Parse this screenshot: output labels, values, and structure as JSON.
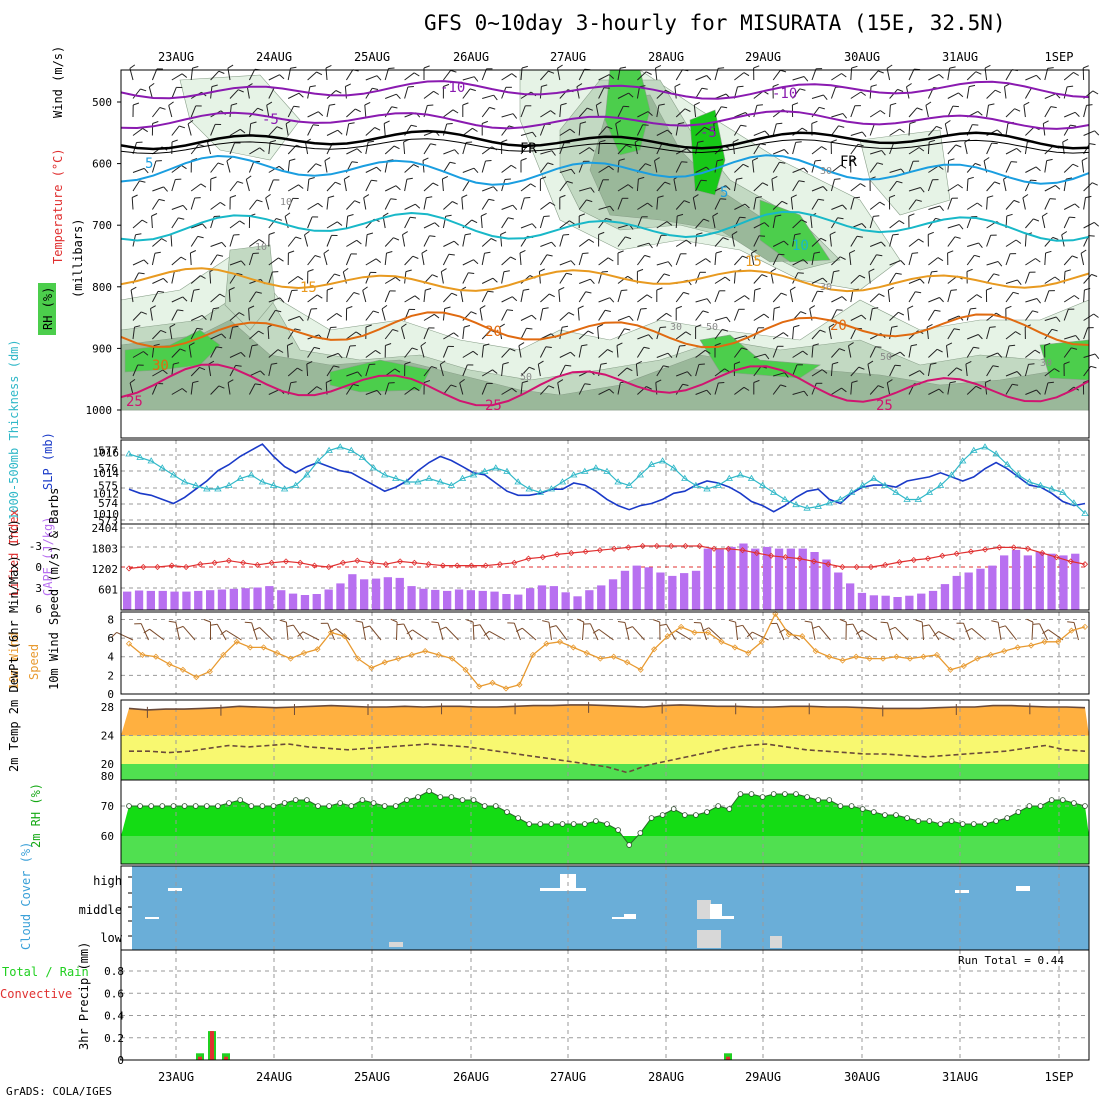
{
  "title": "GFS 0~10day 3-hourly for MISURATA (15E, 32.5N)",
  "footer": "GrADS: COLA/IGES",
  "dates": [
    "23AUG",
    "24AUG",
    "25AUG",
    "26AUG",
    "27AUG",
    "28AUG",
    "29AUG",
    "30AUG",
    "31AUG",
    "1SEP"
  ],
  "colors": {
    "rh_light": "#e6f3e6",
    "rh_mid": "#c2d9c2",
    "rh_dark": "#9ab89a",
    "rh_green": "#4cce4c",
    "rh_bright": "#18c818",
    "temp_purple": "#8a1ab0",
    "temp_blue": "#1a9ee0",
    "temp_cyan": "#18b8c8",
    "temp_orange": "#e89a20",
    "temp_dark_orange": "#e06a10",
    "temp_magenta": "#d01470",
    "slp_line": "#1a3ac8",
    "thickness_line": "#30b8c8",
    "cape_bar": "#b870f0",
    "lifted_index": "#e03030",
    "wind_speed": "#e89a30",
    "wind_barb": "#7a4a2a",
    "temp_band": "#ffb040",
    "dew_band": "#f8f870",
    "base_green": "#50e050",
    "rh_fill": "#14dc14",
    "cloud_bg": "#6aaed8",
    "cloud_white": "#ffffff",
    "cloud_gray": "#d8d8d8",
    "precip_total": "#20d020",
    "precip_conv": "#e03030"
  },
  "upper_panel": {
    "labels": {
      "wind": "Wind (m/s)",
      "temperature": "Temperature (°C)",
      "millibars": "(millibars)",
      "rh": "RH (%)"
    },
    "yticks": [
      "500",
      "600",
      "700",
      "800",
      "900",
      "1000"
    ],
    "contour_labels": {
      "purple": [
        "-10",
        "-5",
        "-5",
        "-10"
      ],
      "black": [
        "FR",
        "FR"
      ],
      "blue": [
        "5",
        "5"
      ],
      "cyan": [
        "10"
      ],
      "orange": [
        "15",
        "15"
      ],
      "dark_orange": [
        "20",
        "20"
      ],
      "magenta": [
        "25",
        "25",
        "25"
      ],
      "grey": [
        "10",
        "10",
        "30",
        "30",
        "30",
        "50",
        "50",
        "50",
        "30"
      ],
      "green": [
        "30"
      ]
    }
  },
  "slp_panel": {
    "label_thickness": "1000-500mb Thickness (dm)",
    "label_slp": "SLP (mb)",
    "left_ticks": [
      "577",
      "576",
      "575",
      "574",
      "573"
    ],
    "right_ticks": [
      "1016",
      "1014",
      "1012",
      "1010"
    ]
  },
  "cape_panel": {
    "label_li": "Lifted Index",
    "label_cape": "CAPE (J/kg)",
    "left_ticks": [
      "-3",
      "0",
      "3",
      "6"
    ],
    "right_ticks": [
      "2404",
      "1803",
      "1202",
      "601"
    ]
  },
  "wind_panel": {
    "label": "10m Wind Speed (m/s) & Barbs",
    "yticks": [
      "8",
      "6",
      "4",
      "2",
      "0"
    ]
  },
  "temp_panel": {
    "label": "2m Temp 2m DewPt (6hr Min/Max) (°C)",
    "yticks": [
      "28",
      "24",
      "20"
    ]
  },
  "rh_panel": {
    "label": "2m RH (%)",
    "yticks": [
      "80",
      "70",
      "60"
    ]
  },
  "cloud_panel": {
    "label": "Cloud Cover (%)",
    "levels": [
      "high",
      "middle",
      "low"
    ]
  },
  "precip_panel": {
    "label_total": "Total / Rain",
    "label_conv": "Convective",
    "label_axis": "3hr Precip (mm)",
    "run_total": "Run Total = 0.44",
    "yticks": [
      "0.8",
      "0.6",
      "0.4",
      "0.2",
      "0"
    ]
  },
  "chart_data": {
    "type": "line",
    "x_time_step_hours": 3,
    "x_categories": [
      "23AUG",
      "24AUG",
      "25AUG",
      "26AUG",
      "27AUG",
      "28AUG",
      "29AUG",
      "30AUG",
      "31AUG",
      "1SEP"
    ],
    "slp_mb": [
      1012.4,
      1012.0,
      1011.8,
      1011.4,
      1011.0,
      1011.6,
      1012.4,
      1013.2,
      1014.2,
      1014.8,
      1015.6,
      1016.2,
      1016.8,
      1015.6,
      1014.6,
      1014.0,
      1014.6,
      1015.0,
      1014.6,
      1014.2,
      1014.0,
      1013.4,
      1012.8,
      1012.2,
      1012.6,
      1013.2,
      1014.2,
      1015.0,
      1015.6,
      1015.2,
      1014.6,
      1014.0,
      1013.8,
      1013.0,
      1012.2,
      1011.8,
      1011.8,
      1012.0,
      1012.4,
      1012.4,
      1013.0,
      1012.8,
      1012.2,
      1011.4,
      1010.8,
      1010.4,
      1010.8,
      1011.0,
      1011.4,
      1012.0,
      1012.2,
      1012.8,
      1013.2,
      1013.0,
      1012.6,
      1012.0,
      1011.2,
      1010.8,
      1010.2,
      1010.8,
      1011.6,
      1012.2,
      1012.4,
      1011.4,
      1011.0,
      1012.0,
      1012.6,
      1012.8,
      1012.8,
      1012.6,
      1013.2,
      1013.4,
      1013.6,
      1014.0,
      1013.6,
      1013.2,
      1013.6,
      1014.4,
      1015.0,
      1014.4,
      1013.6,
      1012.8,
      1012.6,
      1012.0,
      1011.2,
      1010.8,
      1011.0
    ],
    "thickness_dm": [
      576.8,
      576.6,
      576.4,
      576.0,
      575.6,
      575.2,
      575.0,
      574.8,
      574.8,
      575.0,
      575.4,
      575.6,
      575.2,
      575.0,
      574.8,
      575.0,
      575.6,
      576.4,
      577.0,
      577.2,
      577.0,
      576.6,
      576.0,
      575.6,
      575.4,
      575.2,
      575.2,
      575.4,
      575.2,
      575.0,
      575.4,
      575.6,
      575.8,
      576.0,
      575.8,
      575.2,
      574.8,
      574.6,
      574.8,
      575.2,
      575.6,
      575.8,
      576.0,
      575.8,
      575.2,
      575.0,
      575.6,
      576.2,
      576.4,
      576.0,
      575.4,
      575.0,
      574.8,
      575.0,
      575.4,
      575.6,
      575.4,
      575.0,
      574.6,
      574.2,
      573.9,
      573.7,
      573.8,
      574.0,
      574.2,
      574.6,
      575.0,
      575.4,
      575.0,
      574.6,
      574.2,
      574.2,
      574.6,
      575.0,
      575.6,
      576.4,
      577.0,
      577.2,
      576.8,
      576.2,
      575.6,
      575.2,
      575.0,
      574.8,
      574.6,
      574.0,
      573.4
    ],
    "cape_jkg": [
      540,
      570,
      560,
      560,
      540,
      540,
      560,
      580,
      600,
      620,
      640,
      660,
      700,
      580,
      480,
      440,
      470,
      600,
      780,
      1050,
      900,
      920,
      960,
      940,
      700,
      620,
      590,
      560,
      600,
      580,
      560,
      540,
      470,
      450,
      640,
      720,
      700,
      520,
      400,
      580,
      720,
      900,
      1150,
      1300,
      1250,
      1100,
      1000,
      1080,
      1150,
      1800,
      1780,
      1850,
      1950,
      1800,
      1850,
      1800,
      1800,
      1800,
      1700,
      1480,
      1100,
      780,
      500,
      430,
      420,
      380,
      420,
      480,
      560,
      760,
      1000,
      1100,
      1210,
      1300,
      1600,
      1760,
      1600,
      1700,
      1650,
      1600,
      1650
    ],
    "lifted_index": [
      0.2,
      0.0,
      0.0,
      -0.2,
      0.0,
      -0.4,
      -0.6,
      -0.9,
      -0.6,
      -0.3,
      -0.6,
      -0.8,
      -0.6,
      -0.2,
      0.0,
      -0.6,
      -0.9,
      -0.6,
      -0.4,
      -0.8,
      -0.6,
      -0.4,
      -0.2,
      -0.2,
      -0.2,
      -0.2,
      -0.4,
      -0.6,
      -1.2,
      -1.4,
      -1.8,
      -2.0,
      -2.2,
      -2.4,
      -2.6,
      -2.8,
      -3.0,
      -3.0,
      -3.0,
      -3.0,
      -3.0,
      -2.6,
      -2.6,
      -2.4,
      -2.0,
      -1.6,
      -1.4,
      -1.2,
      -0.8,
      -0.4,
      0.0,
      0.0,
      0.0,
      -0.3,
      -0.7,
      -1.0,
      -1.2,
      -1.6,
      -1.9,
      -2.2,
      -2.5,
      -2.8,
      -2.8,
      -2.6,
      -2.0,
      -1.4,
      -0.8,
      -0.4
    ],
    "wind_speed_ms": [
      5.4,
      4.2,
      4.0,
      3.2,
      2.6,
      1.8,
      2.4,
      4.2,
      5.6,
      5.0,
      5.0,
      4.4,
      3.8,
      4.4,
      4.8,
      6.6,
      6.2,
      3.8,
      2.8,
      3.4,
      3.8,
      4.2,
      4.6,
      4.2,
      3.8,
      2.6,
      0.8,
      1.2,
      0.6,
      1.0,
      4.2,
      5.4,
      5.6,
      5.0,
      4.4,
      3.8,
      4.0,
      3.4,
      2.6,
      4.8,
      6.2,
      7.2,
      6.6,
      6.6,
      5.6,
      5.0,
      4.4,
      5.6,
      8.6,
      6.4,
      6.2,
      4.6,
      4.0,
      3.6,
      4.0,
      3.8,
      3.8,
      4.0,
      3.8,
      4.0,
      4.2,
      2.6,
      3.0,
      3.8,
      4.2,
      4.6,
      5.0,
      5.2,
      5.6,
      5.6,
      6.8,
      7.2
    ],
    "temp_2m_c": [
      27.8,
      27.6,
      27.7,
      27.7,
      27.8,
      27.9,
      28.1,
      28.0,
      27.9,
      28.0,
      28.1,
      28.2,
      28.1,
      28.0,
      28.0,
      28.1,
      28.0,
      28.1,
      28.1,
      28.0,
      28.0,
      28.1,
      28.2,
      28.2,
      28.3,
      28.3,
      28.2,
      28.1,
      28.0,
      28.2,
      28.3,
      28.2,
      28.1,
      28.1,
      28.0,
      28.0,
      28.1,
      28.1,
      28.0,
      28.0,
      27.9,
      27.8,
      27.8,
      27.8,
      27.9,
      28.0,
      28.0,
      28.2,
      28.2,
      28.1,
      28.0,
      28.0,
      27.9
    ],
    "dewpt_2m_c": [
      21.8,
      21.8,
      21.6,
      21.8,
      22.2,
      22.6,
      22.4,
      22.6,
      22.8,
      22.4,
      22.2,
      22.0,
      22.2,
      22.4,
      22.6,
      22.8,
      22.6,
      22.4,
      22.0,
      21.6,
      21.2,
      20.8,
      20.4,
      20.0,
      19.6,
      18.8,
      19.8,
      20.4,
      21.0,
      21.6,
      22.2,
      22.6,
      22.8,
      22.4,
      22.0,
      21.8,
      21.6,
      21.4,
      21.4,
      21.2,
      21.0,
      21.2,
      21.4,
      21.6,
      21.8,
      22.2,
      22.6,
      22.0,
      21.8
    ],
    "rh_2m_pct": [
      70,
      70,
      70,
      70,
      70,
      70,
      70,
      70,
      70,
      71,
      72,
      70,
      70,
      70,
      71,
      72,
      72,
      70,
      70,
      71,
      70,
      72,
      71,
      70,
      70,
      72,
      73,
      75,
      73,
      73,
      72,
      72,
      70,
      70,
      68,
      66,
      64,
      64,
      64,
      64,
      64,
      64,
      65,
      64,
      62,
      57,
      61,
      66,
      67,
      69,
      67,
      67,
      68,
      70,
      69,
      74,
      74,
      73,
      74,
      74,
      74,
      73,
      72,
      72,
      70,
      70,
      69,
      68,
      67,
      67,
      66,
      65,
      65,
      64,
      65,
      64,
      64,
      64,
      65,
      66,
      68,
      70,
      70,
      72,
      72,
      71,
      70
    ],
    "precip_total_mm": [
      0.06,
      0.26,
      0.06,
      0.06
    ],
    "precip_convective_mm": [
      0.03,
      0.26,
      0.03,
      0.03
    ],
    "precip_run_total_mm": 0.44
  }
}
